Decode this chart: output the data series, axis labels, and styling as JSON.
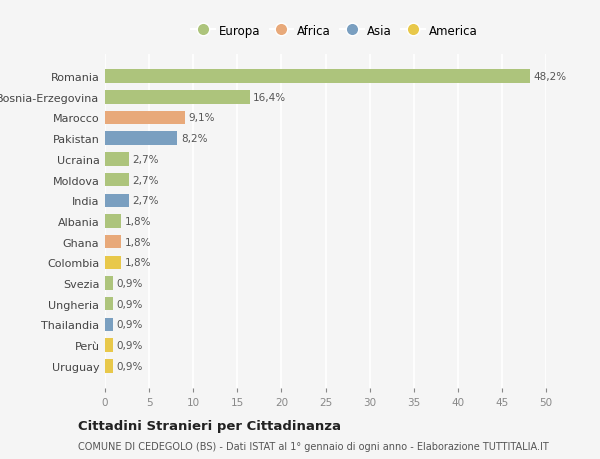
{
  "countries": [
    "Romania",
    "Bosnia-Erzegovina",
    "Marocco",
    "Pakistan",
    "Ucraina",
    "Moldova",
    "India",
    "Albania",
    "Ghana",
    "Colombia",
    "Svezia",
    "Ungheria",
    "Thailandia",
    "Perù",
    "Uruguay"
  ],
  "values": [
    48.2,
    16.4,
    9.1,
    8.2,
    2.7,
    2.7,
    2.7,
    1.8,
    1.8,
    1.8,
    0.9,
    0.9,
    0.9,
    0.9,
    0.9
  ],
  "labels": [
    "48,2%",
    "16,4%",
    "9,1%",
    "8,2%",
    "2,7%",
    "2,7%",
    "2,7%",
    "1,8%",
    "1,8%",
    "1,8%",
    "0,9%",
    "0,9%",
    "0,9%",
    "0,9%",
    "0,9%"
  ],
  "colors": [
    "#adc47c",
    "#adc47c",
    "#e8a97a",
    "#7a9fc0",
    "#adc47c",
    "#adc47c",
    "#7a9fc0",
    "#adc47c",
    "#e8a97a",
    "#e8c84a",
    "#adc47c",
    "#adc47c",
    "#7a9fc0",
    "#e8c84a",
    "#e8c84a"
  ],
  "legend_labels": [
    "Europa",
    "Africa",
    "Asia",
    "America"
  ],
  "legend_colors": [
    "#adc47c",
    "#e8a97a",
    "#7a9fc0",
    "#e8c84a"
  ],
  "title": "Cittadini Stranieri per Cittadinanza",
  "subtitle": "COMUNE DI CEDEGOLO (BS) - Dati ISTAT al 1° gennaio di ogni anno - Elaborazione TUTTITALIA.IT",
  "xlim": [
    0,
    50
  ],
  "xticks": [
    0,
    5,
    10,
    15,
    20,
    25,
    30,
    35,
    40,
    45,
    50
  ],
  "background_color": "#f5f5f5",
  "grid_color": "#ffffff",
  "bar_height": 0.65
}
